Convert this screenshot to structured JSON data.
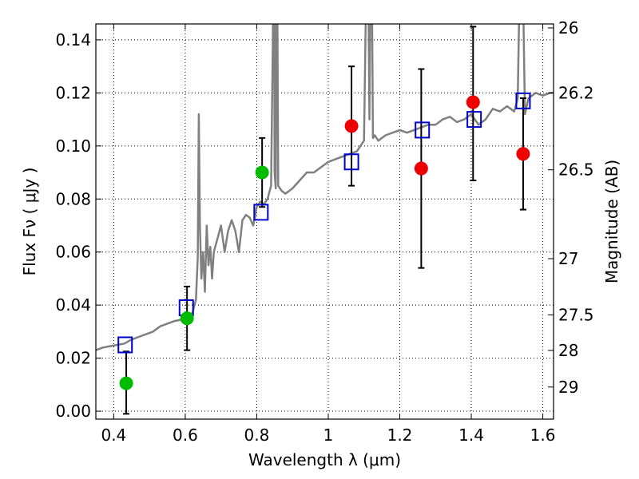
{
  "chart_data": {
    "type": "scatter",
    "xlabel": "Wavelength  λ (μm)",
    "ylabel": "Flux  Fν  ( μJy )",
    "ylabel_right": "Magnitude (AB)",
    "xlim": [
      0.35,
      1.63
    ],
    "ylim": [
      -0.003,
      0.146
    ],
    "grid": true,
    "x_ticks": [
      0.4,
      0.6,
      0.8,
      1.0,
      1.2,
      1.4,
      1.6
    ],
    "x_tick_labels": [
      "0.4",
      "0.6",
      "0.8",
      "1",
      "1.2",
      "1.4",
      "1.6"
    ],
    "y_ticks": [
      0.0,
      0.02,
      0.04,
      0.06,
      0.08,
      0.1,
      0.12,
      0.14
    ],
    "y_tick_labels": [
      "0.00",
      "0.02",
      "0.04",
      "0.06",
      "0.08",
      "0.10",
      "0.12",
      "0.14"
    ],
    "right_ticks": [
      {
        "label": "26",
        "flux": 0.1445
      },
      {
        "label": "26.2",
        "flux": 0.12
      },
      {
        "label": "26.5",
        "flux": 0.091
      },
      {
        "label": "27",
        "flux": 0.0575
      },
      {
        "label": "27.5",
        "flux": 0.0363
      },
      {
        "label": "28",
        "flux": 0.0229
      },
      {
        "label": "29",
        "flux": 0.0091
      }
    ],
    "series": [
      {
        "name": "template spectrum",
        "kind": "line",
        "color": "#808080",
        "x": [
          0.35,
          0.37,
          0.39,
          0.41,
          0.43,
          0.45,
          0.47,
          0.49,
          0.51,
          0.53,
          0.55,
          0.57,
          0.59,
          0.6,
          0.62,
          0.63,
          0.635,
          0.638,
          0.641,
          0.645,
          0.65,
          0.655,
          0.66,
          0.665,
          0.67,
          0.675,
          0.68,
          0.69,
          0.7,
          0.71,
          0.72,
          0.73,
          0.74,
          0.75,
          0.76,
          0.77,
          0.78,
          0.79,
          0.8,
          0.81,
          0.82,
          0.83,
          0.84,
          0.845,
          0.848,
          0.85,
          0.853,
          0.856,
          0.86,
          0.87,
          0.88,
          0.9,
          0.92,
          0.94,
          0.96,
          0.98,
          1.0,
          1.02,
          1.04,
          1.06,
          1.08,
          1.09,
          1.1,
          1.105,
          1.11,
          1.115,
          1.12,
          1.125,
          1.13,
          1.14,
          1.15,
          1.16,
          1.18,
          1.2,
          1.22,
          1.24,
          1.26,
          1.28,
          1.3,
          1.32,
          1.34,
          1.36,
          1.38,
          1.4,
          1.42,
          1.44,
          1.46,
          1.48,
          1.5,
          1.52,
          1.53,
          1.54,
          1.55,
          1.56,
          1.58,
          1.6,
          1.62,
          1.63
        ],
        "y": [
          0.023,
          0.024,
          0.0245,
          0.025,
          0.0255,
          0.027,
          0.028,
          0.029,
          0.03,
          0.032,
          0.033,
          0.034,
          0.0345,
          0.036,
          0.037,
          0.042,
          0.058,
          0.112,
          0.07,
          0.05,
          0.06,
          0.045,
          0.07,
          0.055,
          0.062,
          0.05,
          0.06,
          0.065,
          0.07,
          0.06,
          0.068,
          0.072,
          0.068,
          0.06,
          0.072,
          0.074,
          0.073,
          0.07,
          0.077,
          0.079,
          0.078,
          0.08,
          0.085,
          0.14,
          0.2,
          0.09,
          0.084,
          0.2,
          0.085,
          0.083,
          0.082,
          0.084,
          0.087,
          0.09,
          0.09,
          0.092,
          0.094,
          0.095,
          0.096,
          0.097,
          0.098,
          0.1,
          0.102,
          0.15,
          0.2,
          0.11,
          0.2,
          0.103,
          0.104,
          0.102,
          0.103,
          0.104,
          0.105,
          0.106,
          0.105,
          0.106,
          0.107,
          0.108,
          0.108,
          0.11,
          0.111,
          0.109,
          0.11,
          0.112,
          0.108,
          0.11,
          0.114,
          0.113,
          0.115,
          0.113,
          0.118,
          0.2,
          0.112,
          0.118,
          0.12,
          0.119,
          0.12,
          0.12
        ]
      },
      {
        "name": "model photometry",
        "kind": "open-square",
        "color": "#0000cc",
        "x": [
          0.432,
          0.603,
          0.812,
          1.065,
          1.263,
          1.408,
          1.545
        ],
        "y": [
          0.025,
          0.039,
          0.075,
          0.094,
          0.106,
          0.11,
          0.117
        ]
      },
      {
        "name": "observed (green)",
        "kind": "filled-circle",
        "color": "#00bb00",
        "x": [
          0.435,
          0.605,
          0.815
        ],
        "y": [
          0.0105,
          0.035,
          0.09
        ],
        "yerr_low": [
          0.0115,
          0.012,
          0.013
        ],
        "yerr_high": [
          0.012,
          0.012,
          0.013
        ]
      },
      {
        "name": "observed (red)",
        "kind": "filled-circle",
        "color": "#ee0000",
        "x": [
          1.065,
          1.26,
          1.405,
          1.545
        ],
        "y": [
          0.1075,
          0.0915,
          0.1165,
          0.097
        ],
        "yerr_low": [
          0.0225,
          0.0375,
          0.0295,
          0.021
        ],
        "yerr_high": [
          0.0225,
          0.0375,
          0.0285,
          0.021
        ]
      }
    ]
  }
}
